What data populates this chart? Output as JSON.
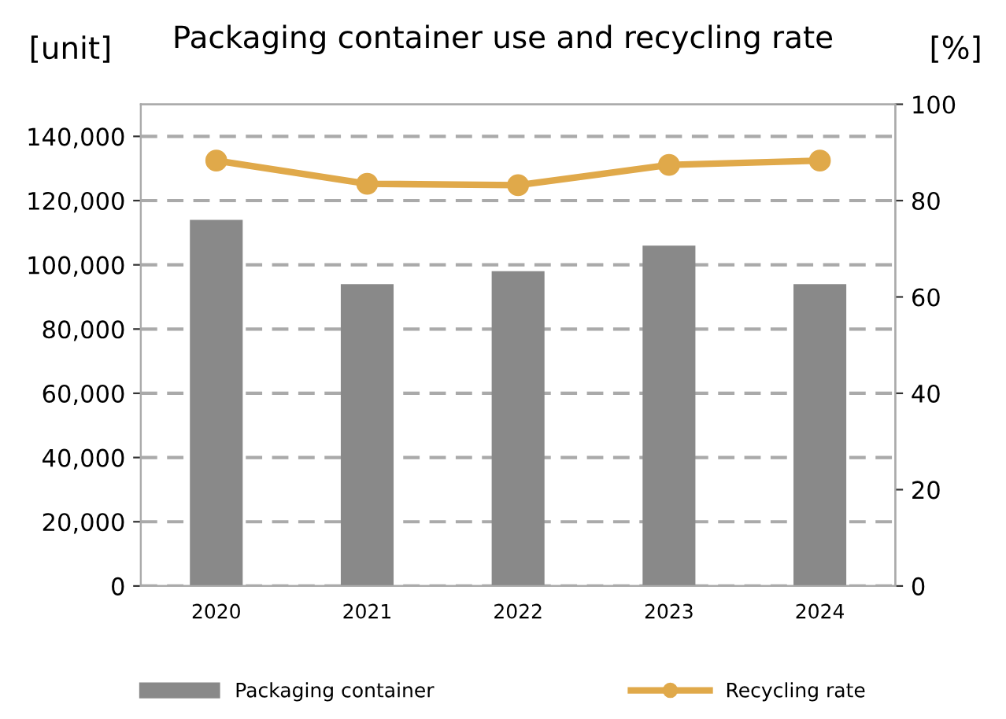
{
  "chart_data": {
    "type": "bar",
    "title": "Packaging container use and recycling rate",
    "ylabel": "[unit]",
    "y2label": "[%]",
    "categories": [
      "2020",
      "2021",
      "2022",
      "2023",
      "2024"
    ],
    "series": [
      {
        "name": "Packaging container",
        "color": "#898989",
        "values": [
          114000,
          94000,
          98000,
          106000,
          94000
        ]
      },
      {
        "name": "Recycling rate",
        "type": "line",
        "axis": "y2",
        "color": "#e0a94a",
        "marker": "circle",
        "values": [
          88.3,
          83.5,
          83.2,
          87.4,
          88.3
        ]
      }
    ],
    "ylim": [
      0,
      150000
    ],
    "yticks": [
      {
        "value": 0,
        "label": "0"
      },
      {
        "value": 20000,
        "label": "20,000"
      },
      {
        "value": 40000,
        "label": "40,000"
      },
      {
        "value": 60000,
        "label": "60,000"
      },
      {
        "value": 80000,
        "label": "80,000"
      },
      {
        "value": 100000,
        "label": "100,000"
      },
      {
        "value": 120000,
        "label": "120,000"
      },
      {
        "value": 140000,
        "label": "140,000"
      }
    ],
    "y2lim": [
      0,
      100
    ],
    "y2ticks": [
      0,
      20,
      40,
      60,
      80,
      100
    ],
    "grid": "y",
    "legend": "bottom"
  }
}
